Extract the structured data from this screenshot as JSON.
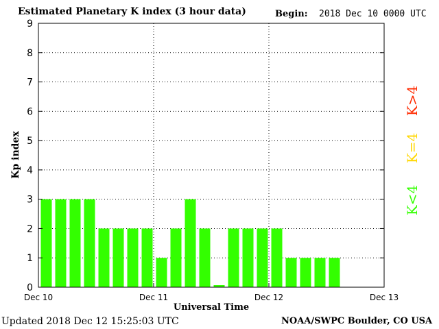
{
  "header": {
    "title": "Estimated Planetary K index (3 hour data)",
    "begin_label": "Begin:",
    "begin_value": "2018 Dec 10 0000 UTC"
  },
  "footer": {
    "updated": "Updated 2018 Dec 12 15:25:03 UTC",
    "credit": "NOAA/SWPC Boulder, CO USA"
  },
  "legend": [
    {
      "label": "K>4",
      "color": "#ff2a00"
    },
    {
      "label": "K=4",
      "color": "#ffd700"
    },
    {
      "label": "K<4",
      "color": "#33ff00"
    }
  ],
  "chart_data": {
    "type": "bar",
    "title": "Estimated Planetary K index (3 hour data)",
    "xlabel": "Universal Time",
    "ylabel": "Kp index",
    "ylim": [
      0,
      9
    ],
    "yticks": [
      "0",
      "1",
      "2",
      "3",
      "4",
      "5",
      "6",
      "7",
      "8",
      "9"
    ],
    "x_tick_labels": [
      "Dec 10",
      "Dec 11",
      "Dec 12",
      "Dec 13"
    ],
    "bars_per_day": 8,
    "total_slots": 24,
    "grid": "dotted",
    "legend_placement": "right",
    "bar_color": "#33ff00",
    "values": [
      3,
      3,
      3,
      3,
      2,
      2,
      2,
      2,
      1,
      2,
      3,
      2,
      0.07,
      2,
      2,
      2,
      2,
      1,
      1,
      1,
      1
    ]
  }
}
